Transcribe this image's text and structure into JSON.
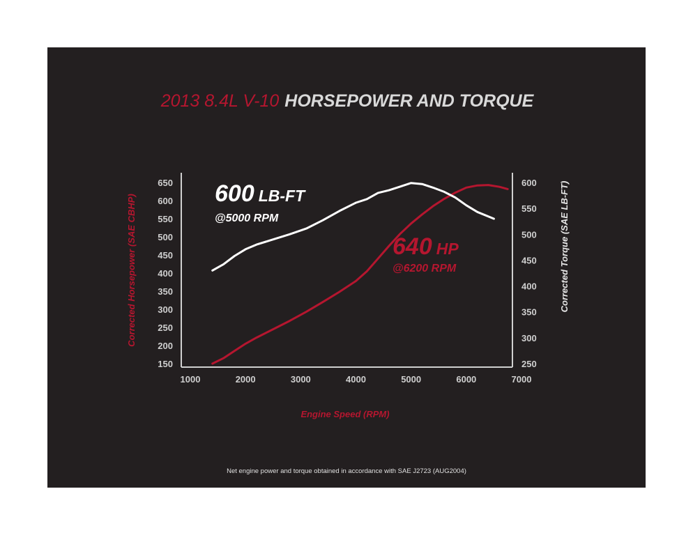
{
  "chart_data": {
    "type": "line",
    "title_part1": "2013 8.4L V-10",
    "title_part2": "HORSEPOWER AND TORQUE",
    "xlabel": "Engine Speed (RPM)",
    "ylabel_left": "Corrected Horsepower (SAE CBHP)",
    "ylabel_right": "Corrected Torque (SAE LB-FT)",
    "xlim": [
      1000,
      7000
    ],
    "ylim_left": [
      150,
      650
    ],
    "ylim_right": [
      250,
      600
    ],
    "x_ticks": [
      1000,
      2000,
      3000,
      4000,
      5000,
      6000,
      7000
    ],
    "y_left_ticks": [
      150,
      200,
      250,
      300,
      350,
      400,
      450,
      500,
      550,
      600,
      650
    ],
    "y_right_ticks": [
      250,
      300,
      350,
      400,
      450,
      500,
      550,
      600
    ],
    "grid": false,
    "colors": {
      "horsepower": "#b5162f",
      "torque": "#ffffff",
      "background": "#231f20",
      "axis": "#d0d0d0"
    },
    "series": [
      {
        "axis": "left",
        "x": [
          1400,
          1600,
          1800,
          2000,
          2200,
          2500,
          2800,
          3100,
          3400,
          3700,
          4000,
          4200,
          4400,
          4600,
          4800,
          5000,
          5200,
          5400,
          5600,
          5800,
          6000,
          6200,
          6400,
          6600,
          6750
        ],
        "y": [
          150,
          165,
          185,
          205,
          222,
          245,
          268,
          293,
          320,
          348,
          378,
          405,
          440,
          475,
          508,
          537,
          562,
          585,
          605,
          622,
          636,
          642,
          643,
          638,
          632
        ]
      },
      {
        "axis": "right",
        "x": [
          1400,
          1600,
          1800,
          2000,
          2200,
          2500,
          2800,
          3100,
          3400,
          3700,
          4000,
          4200,
          4400,
          4600,
          4800,
          5000,
          5200,
          5400,
          5600,
          5800,
          6000,
          6200,
          6500
        ],
        "y": [
          430,
          442,
          458,
          471,
          480,
          490,
          500,
          511,
          527,
          545,
          561,
          568,
          580,
          585,
          592,
          599,
          597,
          590,
          582,
          571,
          556,
          543,
          530
        ]
      }
    ],
    "annotations": [
      {
        "big": "600",
        "unit": "LB-FT",
        "sub": "@5000 RPM"
      },
      {
        "big": "640",
        "unit": "HP",
        "sub": "@6200 RPM"
      }
    ]
  },
  "footnote": "Net engine power and torque obtained in accordance with SAE J2723 (AUG2004)"
}
